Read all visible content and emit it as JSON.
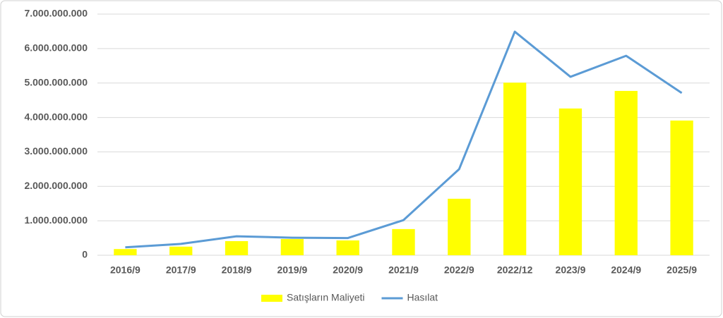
{
  "chart_data": {
    "type": "bar",
    "categories": [
      "2016/9",
      "2017/9",
      "2018/9",
      "2019/9",
      "2020/9",
      "2021/9",
      "2022/9",
      "2022/12",
      "2023/9",
      "2024/9",
      "2025/9"
    ],
    "series": [
      {
        "name": "Satışların Maliyeti",
        "type": "bar",
        "color": "#ffff00",
        "values": [
          180000000,
          250000000,
          410000000,
          470000000,
          430000000,
          760000000,
          1640000000,
          5010000000,
          4260000000,
          4770000000,
          3910000000
        ]
      },
      {
        "name": "Hasılat",
        "type": "line",
        "color": "#5b9bd5",
        "values": [
          230000000,
          330000000,
          550000000,
          510000000,
          500000000,
          1020000000,
          2500000000,
          6490000000,
          5180000000,
          5790000000,
          4710000000
        ]
      }
    ],
    "ylim": [
      0,
      7000000000
    ],
    "yticks": [
      0,
      {
        "value": 1000000000,
        "label": "1.000.000.000"
      },
      {
        "value": 2000000000,
        "label": "2.000.000.000"
      },
      {
        "value": 3000000000,
        "label": "3.000.000.000"
      },
      {
        "value": 4000000000,
        "label": "4.000.000.000"
      },
      {
        "value": 5000000000,
        "label": "5.000.000.000"
      },
      {
        "value": 6000000000,
        "label": "6.000.000.000"
      },
      {
        "value": 7000000000,
        "label": "7.000.000.000"
      }
    ],
    "grid": true,
    "legend": "bottom"
  }
}
